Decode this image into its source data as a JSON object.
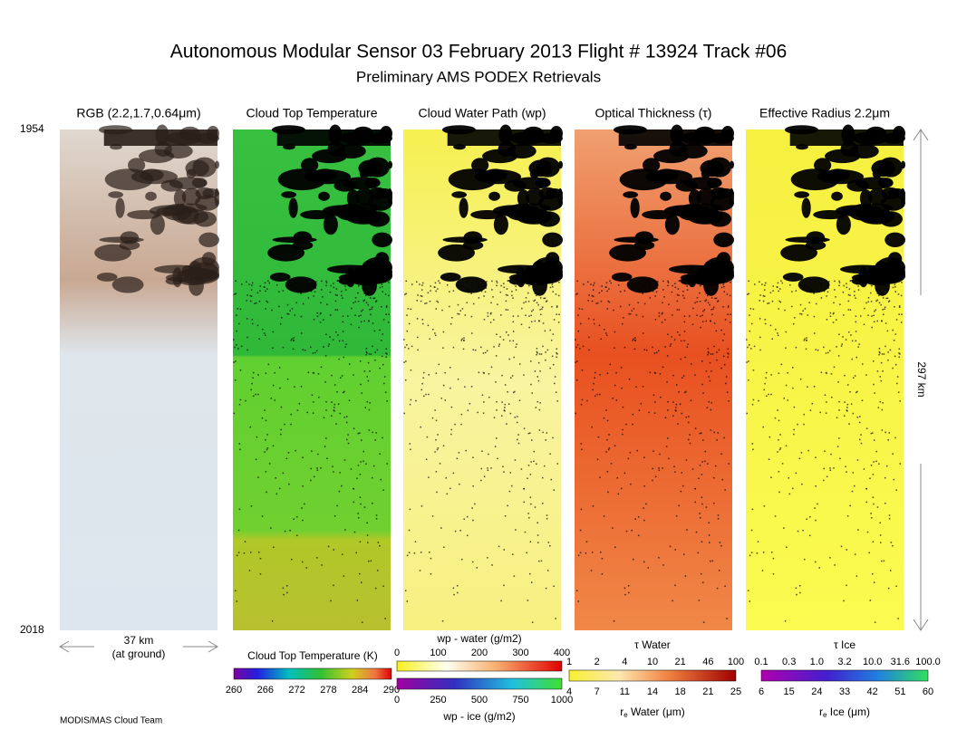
{
  "header": {
    "title": "Autonomous Modular Sensor  03 February 2013  Flight # 13924 Track #06",
    "subtitle": "Preliminary AMS PODEX Retrievals"
  },
  "panels": [
    "RGB (2.2,1.7,0.64μm)",
    "Cloud Top Temperature",
    "Cloud Water Path (wp)",
    "Optical Thickness (τ)",
    "Effective Radius 2.2μm"
  ],
  "scan": {
    "start": "1954",
    "end": "2018",
    "length": "297 km",
    "width": "37 km",
    "width_note": "(at ground)"
  },
  "colorbars": {
    "ctt": {
      "title": "Cloud Top Temperature (K)",
      "ticks": [
        "260",
        "266",
        "272",
        "278",
        "284",
        "290"
      ]
    },
    "wp_water": {
      "title": "wp - water (g/m2)",
      "ticks": [
        "0",
        "100",
        "200",
        "300",
        "400"
      ]
    },
    "wp_ice": {
      "title": "wp - ice (g/m2)",
      "ticks": [
        "0",
        "250",
        "500",
        "750",
        "1000"
      ]
    },
    "tau_water": {
      "title": "τ Water",
      "ticks": [
        "1",
        "2",
        "4",
        "10",
        "21",
        "46",
        "100"
      ]
    },
    "re_water": {
      "title": {
        "symbol": "r",
        "subscript": "e",
        "text": " Water (μm)"
      },
      "ticks": [
        "4",
        "7",
        "11",
        "14",
        "18",
        "21",
        "25"
      ]
    },
    "tau_ice": {
      "title": "τ Ice",
      "ticks": [
        "0.1",
        "0.3",
        "1.0",
        "3.2",
        "10.0",
        "31.6",
        "100.0"
      ]
    },
    "re_ice": {
      "title": {
        "symbol": "r",
        "subscript": "e",
        "text": " Ice (μm)"
      },
      "ticks": [
        "6",
        "15",
        "24",
        "33",
        "42",
        "51",
        "60"
      ]
    }
  },
  "footer": "MODIS/MAS Cloud Team"
}
